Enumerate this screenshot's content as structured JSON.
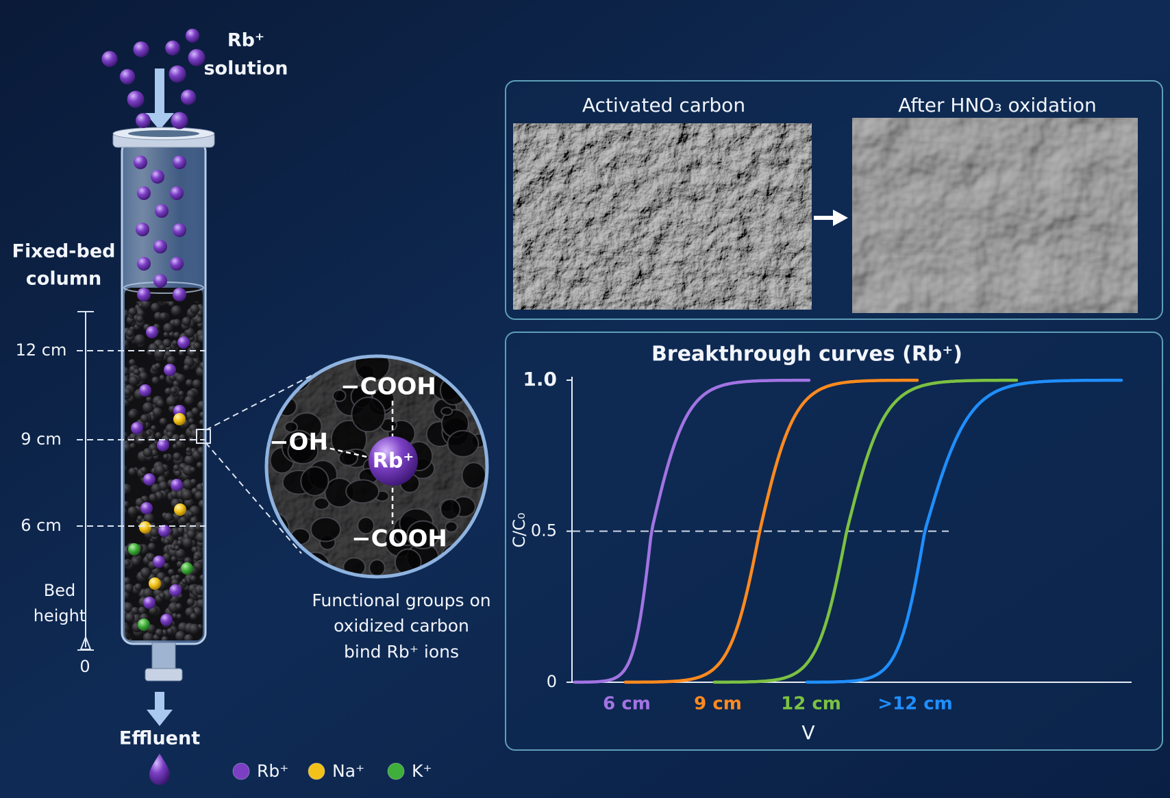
{
  "column": {
    "inlet_ion": "Rb⁺",
    "inlet_label": "solution",
    "title": [
      "Fixed-bed",
      "column"
    ],
    "heights": [
      "12 cm",
      "9 cm",
      "6 cm"
    ],
    "zero": "0",
    "bed_height": [
      "Bed",
      "height"
    ],
    "outlet": "Effluent"
  },
  "legend": [
    {
      "label": "Rb⁺",
      "color": "#7b3fc4"
    },
    {
      "label": "Na⁺",
      "color": "#f2c21b"
    },
    {
      "label": "K⁺",
      "color": "#3fae3a"
    }
  ],
  "magnifier": {
    "groups": [
      "−COOH",
      "−OH",
      "−COOH"
    ],
    "center_ion": "Rb⁺",
    "caption": [
      "Functional groups on",
      "oxidized carbon",
      "bind Rb⁺ ions"
    ]
  },
  "sem": {
    "panels": [
      {
        "title": "Activated carbon"
      },
      {
        "title": "After HNO₃ oxidation"
      }
    ]
  },
  "chart": {
    "title": "Breakthrough curves (Rb⁺)",
    "ylabel": "C/C₀",
    "xlabel": "V",
    "ylim": [
      0,
      1
    ],
    "yticks": [
      0,
      0.5,
      {
        "value": 1,
        "label": "1.0"
      }
    ],
    "series": [
      {
        "name": "6 cm",
        "color": "#a274e3"
      },
      {
        "name": "9 cm",
        "color": "#ff8a1e"
      },
      {
        "name": "12 cm",
        "color": "#7cc142"
      },
      {
        "name": ">12 cm",
        "color": "#1f8fff"
      }
    ]
  }
}
